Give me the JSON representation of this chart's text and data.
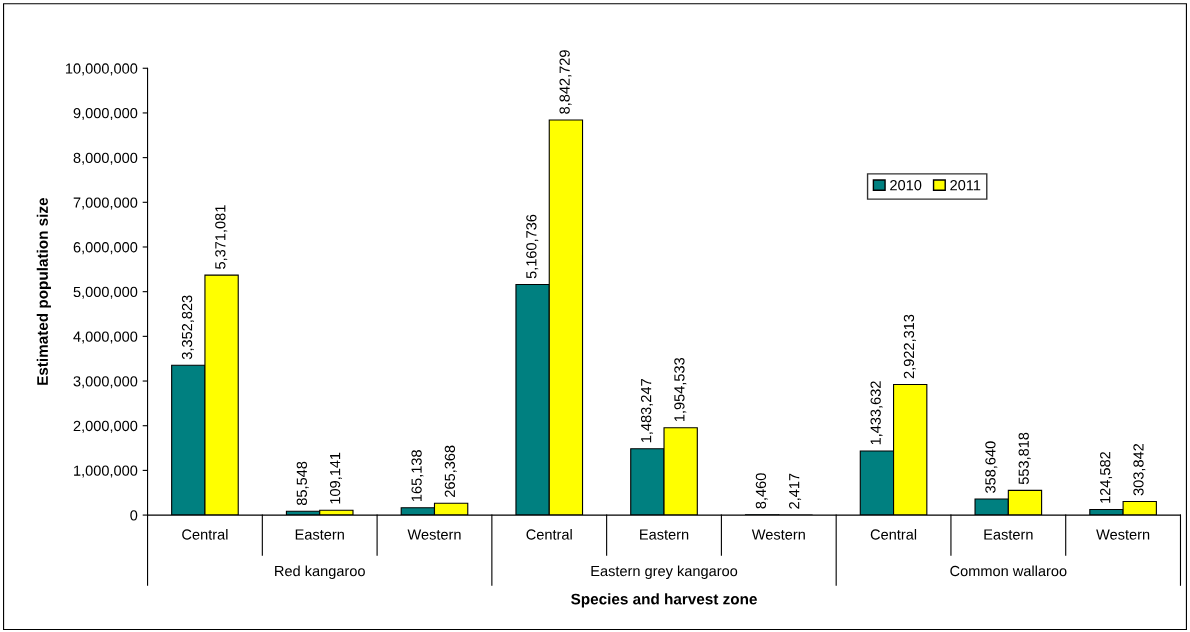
{
  "chart_data": {
    "type": "bar",
    "xlabel": "Species and harvest zone",
    "ylabel": "Estimated population size",
    "categories": [
      "Central",
      "Eastern",
      "Western",
      "Central",
      "Eastern",
      "Western",
      "Central",
      "Eastern",
      "Western"
    ],
    "annotations": [
      "Red kangaroo",
      "Eastern grey kangaroo",
      "Common wallaroo"
    ],
    "series": [
      {
        "name": "2010",
        "color": "#008080",
        "values": [
          3352823,
          85548,
          165138,
          5160736,
          1483247,
          8460,
          1433632,
          358640,
          124582
        ],
        "value_labels": [
          "3,352,823",
          "85,548",
          "165,138",
          "5,160,736",
          "1,483,247",
          "8,460",
          "1,433,632",
          "358,640",
          "124,582"
        ]
      },
      {
        "name": "2011",
        "color": "#ffff00",
        "values": [
          5371081,
          109141,
          265368,
          8842729,
          1954533,
          2417,
          2922313,
          553818,
          303842
        ],
        "value_labels": [
          "5,371,081",
          "109,141",
          "265,368",
          "8,842,729",
          "1,954,533",
          "2,417",
          "2,922,313",
          "553,818",
          "303,842"
        ]
      }
    ],
    "ylim": [
      0,
      10000000
    ],
    "yticks": [
      0,
      {
        "value": 1000000,
        "label": "1,000,000"
      },
      {
        "value": 2000000,
        "label": "2,000,000"
      },
      {
        "value": 3000000,
        "label": "3,000,000"
      },
      {
        "value": 4000000,
        "label": "4,000,000"
      },
      {
        "value": 5000000,
        "label": "5,000,000"
      },
      {
        "value": 6000000,
        "label": "6,000,000"
      },
      {
        "value": 7000000,
        "label": "7,000,000"
      },
      {
        "value": 8000000,
        "label": "8,000,000"
      },
      {
        "value": 9000000,
        "label": "9,000,000"
      },
      {
        "value": 10000000,
        "label": "10,000,000"
      }
    ],
    "grid": false,
    "legend": "top right"
  }
}
